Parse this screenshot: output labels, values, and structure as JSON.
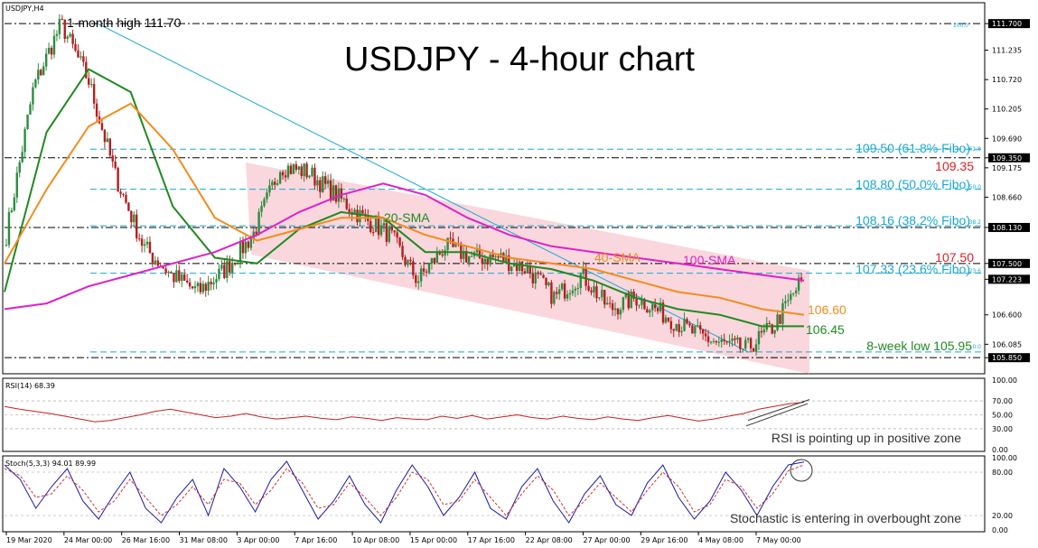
{
  "symbol_label": "USDJPY,H4",
  "title": "USDJPY - 4-hour chart",
  "colors": {
    "up": "#2e8b3e",
    "down": "#b41e1e",
    "sma20": "#1f8a1f",
    "sma40": "#f28c1c",
    "sma100": "#e020c8",
    "fibo": "#19a8d6",
    "channel": "#f7c9d2",
    "rsi": "#c82020",
    "stoch_main": "#1a1aa8",
    "stoch_signal": "#d43030",
    "red_text": "#e02020"
  },
  "chart_data": [
    {
      "type": "candlestick",
      "title": "USDJPY - 4-hour chart",
      "ylim": [
        105.6,
        112.05
      ],
      "price_ticks": [
        "111.700",
        "111.235",
        "110.720",
        "110.205",
        "109.690",
        "109.350",
        "109.175",
        "108.660",
        "108.130",
        "107.500",
        "107.223",
        "106.600",
        "106.085",
        "105.850"
      ],
      "highlight_ticks": [
        "111.700",
        "109.350",
        "108.130",
        "107.500",
        "107.223",
        "105.850"
      ],
      "x_ticks": [
        "19 Mar 2020",
        "24 Mar 00:00",
        "26 Mar 16:00",
        "31 Mar 08:00",
        "3 Apr 00:00",
        "7 Apr 16:00",
        "10 Apr 08:00",
        "15 Apr 00:00",
        "17 Apr 16:00",
        "22 Apr 08:00",
        "27 Apr 00:00",
        "29 Apr 16:00",
        "4 May 08:00",
        "7 May 00:00"
      ],
      "close_path": [
        108.0,
        110.6,
        111.7,
        110.7,
        109.0,
        107.8,
        107.3,
        107.0,
        107.4,
        108.0,
        109.2,
        109.1,
        108.7,
        108.3,
        108.0,
        107.2,
        107.8,
        107.6,
        107.6,
        107.4,
        106.9,
        107.3,
        106.7,
        106.9,
        106.6,
        106.3,
        106.1,
        106.0,
        106.4,
        107.2
      ],
      "horizontal_levels": [
        {
          "price": 111.7,
          "label": "1-month high 111.70",
          "style": "black-dash"
        },
        {
          "price": 109.5,
          "label": "109.50 (61.8% Fibo)",
          "style": "fibo"
        },
        {
          "price": 109.35,
          "label": "109.35",
          "style": "black-dash"
        },
        {
          "price": 108.8,
          "label": "108.80 (50.0% Fibo)",
          "style": "fibo"
        },
        {
          "price": 108.16,
          "label": "108.16 (38.2% Fibo)",
          "style": "fibo"
        },
        {
          "price": 108.13,
          "label": "",
          "style": "black-dash"
        },
        {
          "price": 107.5,
          "label": "107.50",
          "style": "black-dash"
        },
        {
          "price": 107.33,
          "label": "107.33 (23.6% Fibo)",
          "style": "fibo"
        },
        {
          "price": 105.85,
          "label": "",
          "style": "black-dash"
        },
        {
          "price": 105.95,
          "label": "8-week low 105.95",
          "style": "fibo"
        }
      ],
      "fibo_tiny_labels": [
        "100.0",
        "61.8",
        "50.0",
        "38.2",
        "23.6",
        "0.0"
      ],
      "indicators": [
        {
          "name": "20-SMA",
          "values": [
            107.0,
            109.8,
            110.9,
            110.5,
            108.5,
            107.6,
            107.5,
            108.1,
            108.4,
            108.3,
            107.7,
            107.7,
            107.5,
            107.4,
            107.2,
            106.9,
            106.7,
            106.6,
            106.4,
            106.4
          ]
        },
        {
          "name": "40-SMA",
          "values": [
            107.5,
            108.8,
            109.9,
            110.3,
            109.5,
            108.3,
            107.9,
            108.1,
            108.3,
            108.3,
            108.0,
            107.8,
            107.6,
            107.5,
            107.4,
            107.2,
            107.0,
            106.9,
            106.7,
            106.6
          ]
        },
        {
          "name": "100-SMA",
          "values": [
            106.7,
            106.8,
            107.1,
            107.3,
            107.5,
            107.7,
            108.0,
            108.4,
            108.7,
            108.9,
            108.7,
            108.3,
            108.0,
            107.8,
            107.7,
            107.6,
            107.5,
            107.4,
            107.3,
            107.2
          ]
        }
      ],
      "price_labels": {
        "sma40_value": "106.60",
        "sma20_value": "106.45",
        "high_label": "1-month high 111.70"
      }
    },
    {
      "type": "line",
      "title": "RSI(14) 68.39",
      "ylim": [
        0,
        100
      ],
      "y_ticks": [
        "100.00",
        "70.00",
        "50.00",
        "30.00",
        "0.00"
      ],
      "levels": [
        70,
        50,
        30
      ],
      "series": [
        {
          "name": "RSI(14)",
          "values": [
            62,
            58,
            55,
            52,
            48,
            44,
            40,
            42,
            46,
            50,
            55,
            58,
            54,
            50,
            46,
            48,
            52,
            47,
            44,
            46,
            48,
            45,
            43,
            47,
            45,
            42,
            46,
            44,
            43,
            48,
            45,
            49,
            44,
            47,
            50,
            46,
            44,
            48,
            45,
            43,
            47,
            44,
            42,
            46,
            49,
            45,
            41,
            44,
            48,
            52,
            58,
            62,
            66,
            68
          ]
        }
      ],
      "annotation": "RSI is pointing up in positive zone"
    },
    {
      "type": "line",
      "title": "Stoch(5,3,3) 94.01 89.99",
      "ylim": [
        0,
        100
      ],
      "y_ticks": [
        "100.00",
        "80.00",
        "20.00",
        "0.00"
      ],
      "levels": [
        80,
        20
      ],
      "series": [
        {
          "name": "%K",
          "values": [
            90,
            70,
            30,
            60,
            85,
            40,
            15,
            50,
            80,
            30,
            10,
            45,
            70,
            20,
            85,
            60,
            25,
            70,
            95,
            55,
            15,
            40,
            75,
            35,
            10,
            55,
            90,
            60,
            20,
            45,
            80,
            30,
            15,
            60,
            85,
            40,
            10,
            50,
            75,
            35,
            20,
            65,
            90,
            45,
            15,
            40,
            80,
            55,
            20,
            60,
            90,
            94
          ]
        },
        {
          "name": "%D",
          "values": [
            85,
            75,
            45,
            50,
            75,
            55,
            25,
            40,
            70,
            45,
            20,
            35,
            60,
            35,
            70,
            65,
            35,
            55,
            85,
            65,
            30,
            35,
            65,
            45,
            20,
            45,
            80,
            70,
            35,
            40,
            70,
            45,
            20,
            50,
            75,
            55,
            20,
            40,
            65,
            45,
            25,
            55,
            80,
            60,
            25,
            35,
            70,
            60,
            30,
            50,
            82,
            90
          ]
        }
      ],
      "annotation": "Stochastic is entering in overbought zone"
    }
  ]
}
